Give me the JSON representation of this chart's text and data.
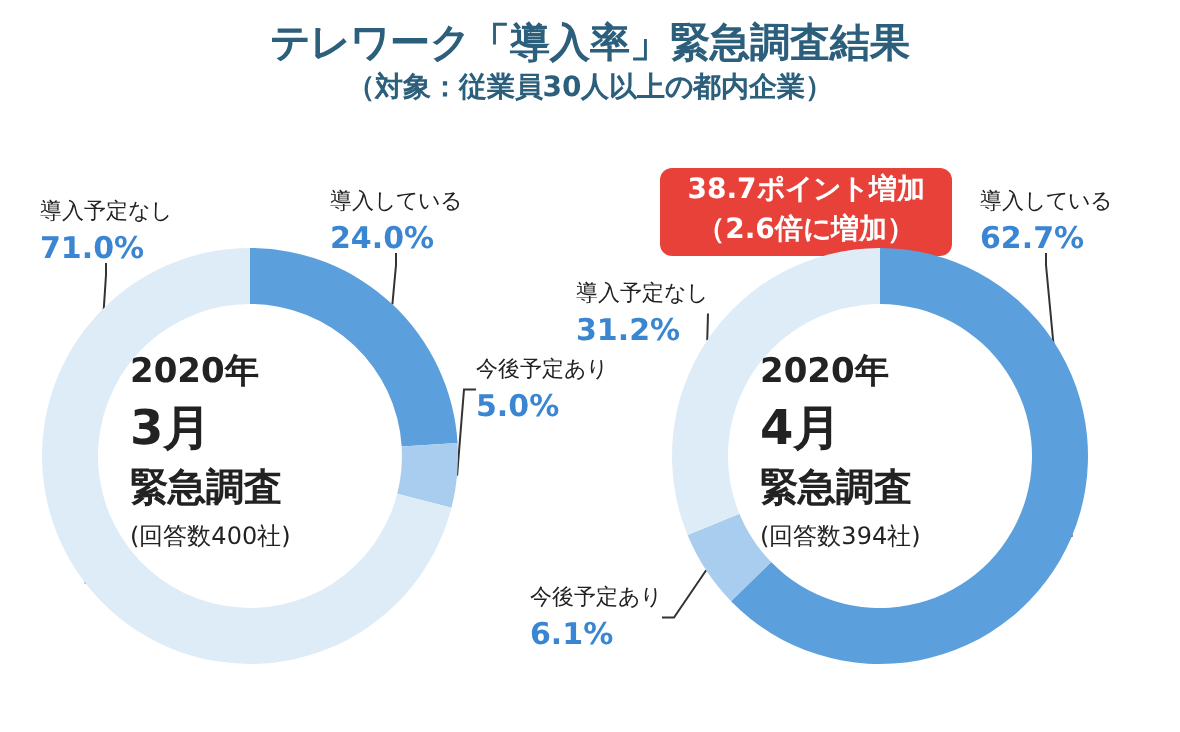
{
  "chart_data": [
    {
      "type": "donut",
      "title": "テレワーク「導入率」緊急調査結果",
      "subtitle": "（対象：従業員30人以上の都内企業）",
      "categories": [
        "導入している",
        "今後予定あり",
        "導入予定なし"
      ],
      "values": [
        24.0,
        5.0,
        71.0
      ],
      "value_labels": [
        "24.0%",
        "5.0%",
        "71.0%"
      ],
      "colors": [
        "#5b9fdd",
        "#a8cdef",
        "#deecf8"
      ],
      "annotations": [
        "2020年",
        "3月",
        "緊急調査",
        "(回答数400社)"
      ],
      "legend": false
    },
    {
      "type": "donut",
      "categories": [
        "導入している",
        "今後予定あり",
        "導入予定なし"
      ],
      "values": [
        62.7,
        6.1,
        31.2
      ],
      "value_labels": [
        "62.7%",
        "6.1%",
        "31.2%"
      ],
      "colors": [
        "#5b9fdd",
        "#a8cdef",
        "#deecf8"
      ],
      "annotations": [
        "2020年",
        "4月",
        "緊急調査",
        "(回答数394社)",
        "38.7ポイント増加",
        "（2.6倍に増加）"
      ],
      "legend": false
    }
  ]
}
